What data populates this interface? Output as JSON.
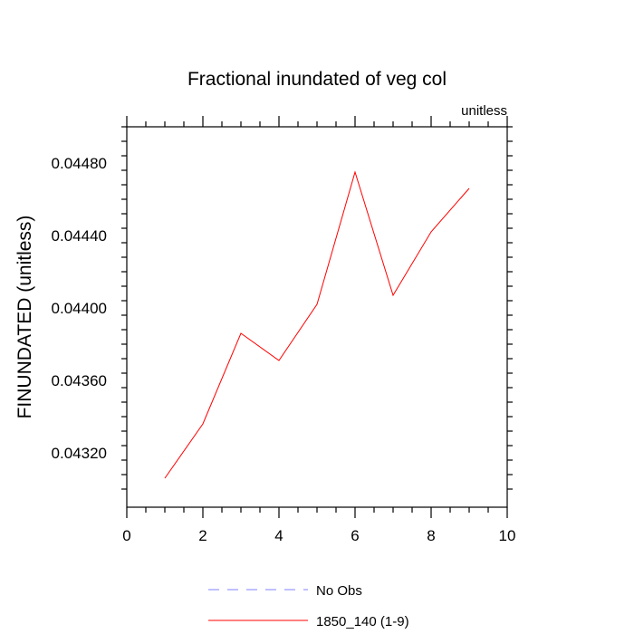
{
  "chart_data": {
    "type": "line",
    "title": "Fractional inundated of veg col",
    "units_label": "unitless",
    "ylabel": "FINUNDATED  (unitless)",
    "xlabel": "",
    "xlim": [
      0,
      10
    ],
    "ylim": [
      0.0429,
      0.045
    ],
    "x_ticks": [
      0,
      2,
      4,
      6,
      8,
      10
    ],
    "x_tick_labels": [
      "0",
      "2",
      "4",
      "6",
      "8",
      "10"
    ],
    "y_ticks": [
      0.0432,
      0.0436,
      0.044,
      0.0444,
      0.0448
    ],
    "y_tick_labels": [
      "0.04320",
      "0.04360",
      "0.04400",
      "0.04440",
      "0.04480"
    ],
    "grid": false,
    "legend_position": "bottom-center",
    "series": [
      {
        "name": "1850_140 (1-9)",
        "color": "#ff0000",
        "dash": "solid",
        "x": [
          1,
          2,
          3,
          4,
          5,
          6,
          7,
          8,
          9
        ],
        "y": [
          0.04306,
          0.04336,
          0.04386,
          0.04371,
          0.04402,
          0.04475,
          0.04407,
          0.04442,
          0.04466
        ]
      }
    ],
    "legend": [
      {
        "label": "No Obs",
        "color": "#8080ff",
        "dash": "dashed"
      },
      {
        "label": "1850_140 (1-9)",
        "color": "#ff0000",
        "dash": "solid"
      }
    ]
  }
}
